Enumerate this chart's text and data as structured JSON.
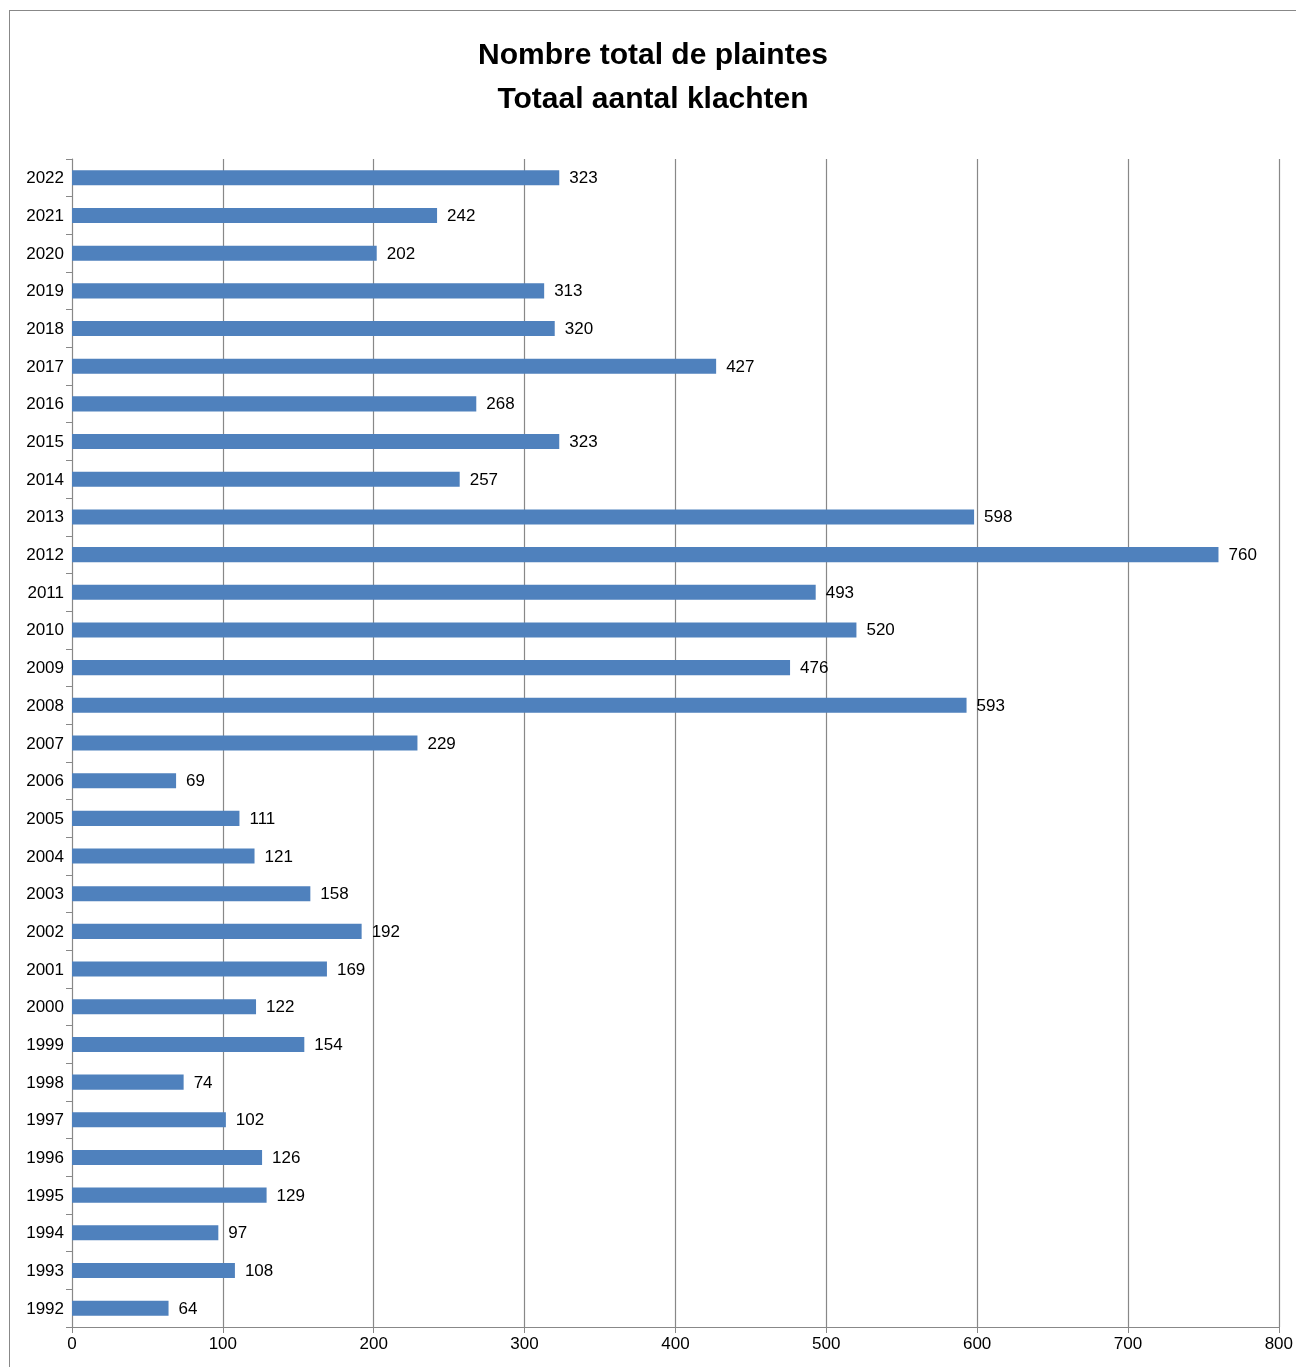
{
  "chart_data": {
    "type": "bar",
    "orientation": "horizontal",
    "title": "Nombre total de plaintes",
    "subtitle": "Totaal aantal klachten",
    "categories": [
      "2022",
      "2021",
      "2020",
      "2019",
      "2018",
      "2017",
      "2016",
      "2015",
      "2014",
      "2013",
      "2012",
      "2011",
      "2010",
      "2009",
      "2008",
      "2007",
      "2006",
      "2005",
      "2004",
      "2003",
      "2002",
      "2001",
      "2000",
      "1999",
      "1998",
      "1997",
      "1996",
      "1995",
      "1994",
      "1993",
      "1992"
    ],
    "values": [
      323,
      242,
      202,
      313,
      320,
      427,
      268,
      323,
      257,
      598,
      760,
      493,
      520,
      476,
      593,
      229,
      69,
      111,
      121,
      158,
      192,
      169,
      122,
      154,
      74,
      102,
      126,
      129,
      97,
      108,
      64
    ],
    "color": "#4f81bd",
    "xlim": [
      0,
      800
    ],
    "xticks": [
      0,
      100,
      200,
      300,
      400,
      500,
      600,
      700,
      800
    ],
    "grid": "x",
    "data_labels": true
  }
}
